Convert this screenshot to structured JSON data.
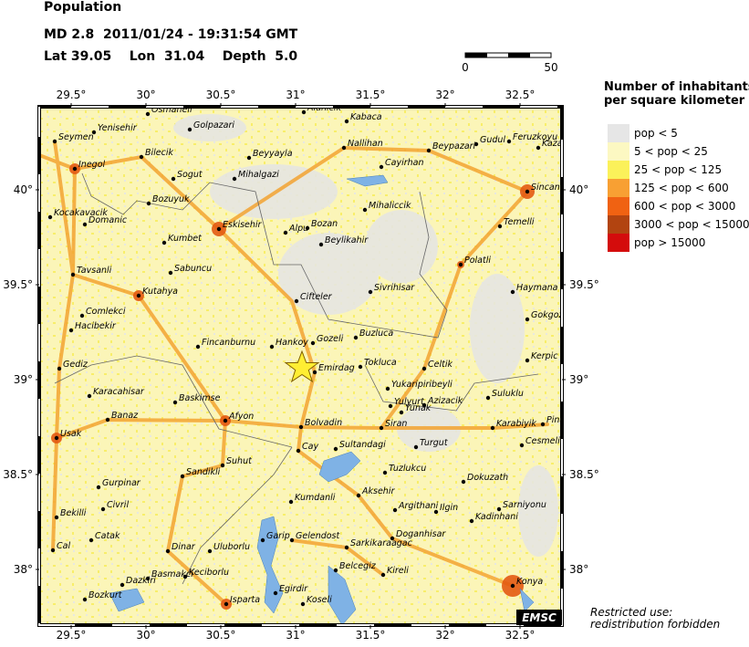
{
  "header": {
    "title": "Population",
    "event": "MD 2.8  2011/01/24 - 19:31:54 GMT",
    "location": "Lat 39.05    Lon  31.04    Depth  5.0"
  },
  "scale_bar": {
    "labels": [
      "0",
      "50"
    ]
  },
  "map": {
    "lon_labels": [
      "29.5°",
      "30°",
      "30.5°",
      "31°",
      "31.5°",
      "32°",
      "32.5°"
    ],
    "lat_labels": [
      "40°",
      "39.5°",
      "39°",
      "38.5°",
      "38°"
    ],
    "badge": "EMSC",
    "cities": [
      "Osmaneli",
      "Alanicik",
      "Kabaca",
      "Golpazari",
      "Yenisehir",
      "Seymen",
      "Bilecik",
      "Beyyayla",
      "Nallihan",
      "Beypazari",
      "Gudul",
      "Feruzkoyu",
      "Kazan",
      "Inegol",
      "Sogut",
      "Mihalgazi",
      "Cayirhan",
      "Sincan",
      "Bozuyuk",
      "Mihaliccik",
      "Kocakavacik",
      "Domanic",
      "Eskisehir",
      "Alpu",
      "Bozan",
      "Temelli",
      "Kumbet",
      "Beylikahir",
      "Polatli",
      "Sabuncu",
      "Tavsanli",
      "Sivrihisar",
      "Haymana",
      "Kutahya",
      "Cifteler",
      "Comlekci",
      "Gokgoz",
      "Hacibekir",
      "Gozeli",
      "Buzluca",
      "Fincanburnu",
      "Hankoy",
      "Kerpic",
      "Gediz",
      "Tokluca",
      "Emirdag",
      "Celtik",
      "Karacahisar",
      "Yukaripiribeyli",
      "Suluklu",
      "Pinar",
      "Baskimse",
      "Yulyurt",
      "Azizacik",
      "Yunak",
      "Banaz",
      "Afyon",
      "Bolvadin",
      "Siran",
      "Karabiyik",
      "Usak",
      "Turgut",
      "Cesmeli",
      "Cay",
      "Sultandagi",
      "Suhut",
      "Tuzlukcu",
      "Dokuzath",
      "Sandikli",
      "Gurpinar",
      "Aksehir",
      "Kumdanli",
      "Civril",
      "Argithani",
      "Ilgin",
      "Sarniyonu",
      "Bekilli",
      "Catak",
      "Kadinhani",
      "Garip",
      "Gelendost",
      "Doganhisar",
      "Cal",
      "Dinar",
      "Uluborlu",
      "Sarkikaraagac",
      "Belcegiz",
      "Kireli",
      "Basmakci",
      "Keciborlu",
      "Konya",
      "Dazkiri",
      "Egirdir",
      "Bozkurt",
      "Isparta",
      "Koseli"
    ]
  },
  "legend": {
    "title": [
      "Number of inhabitants",
      "per square kilometer"
    ],
    "items": [
      {
        "label": "pop < 5",
        "color": "#e6e6e6"
      },
      {
        "label": "5 < pop < 25",
        "color": "#fcf8c2"
      },
      {
        "label": "25 < pop < 125",
        "color": "#fbf15a"
      },
      {
        "label": "125 < pop < 600",
        "color": "#f8a033"
      },
      {
        "label": "600 < pop < 3000",
        "color": "#f06212"
      },
      {
        "label": "3000 < pop < 15000",
        "color": "#b24410"
      },
      {
        "label": "pop > 15000",
        "color": "#d40c0c"
      }
    ]
  },
  "footer": {
    "notice": [
      "Restricted use:",
      "redistribution forbidden"
    ]
  }
}
